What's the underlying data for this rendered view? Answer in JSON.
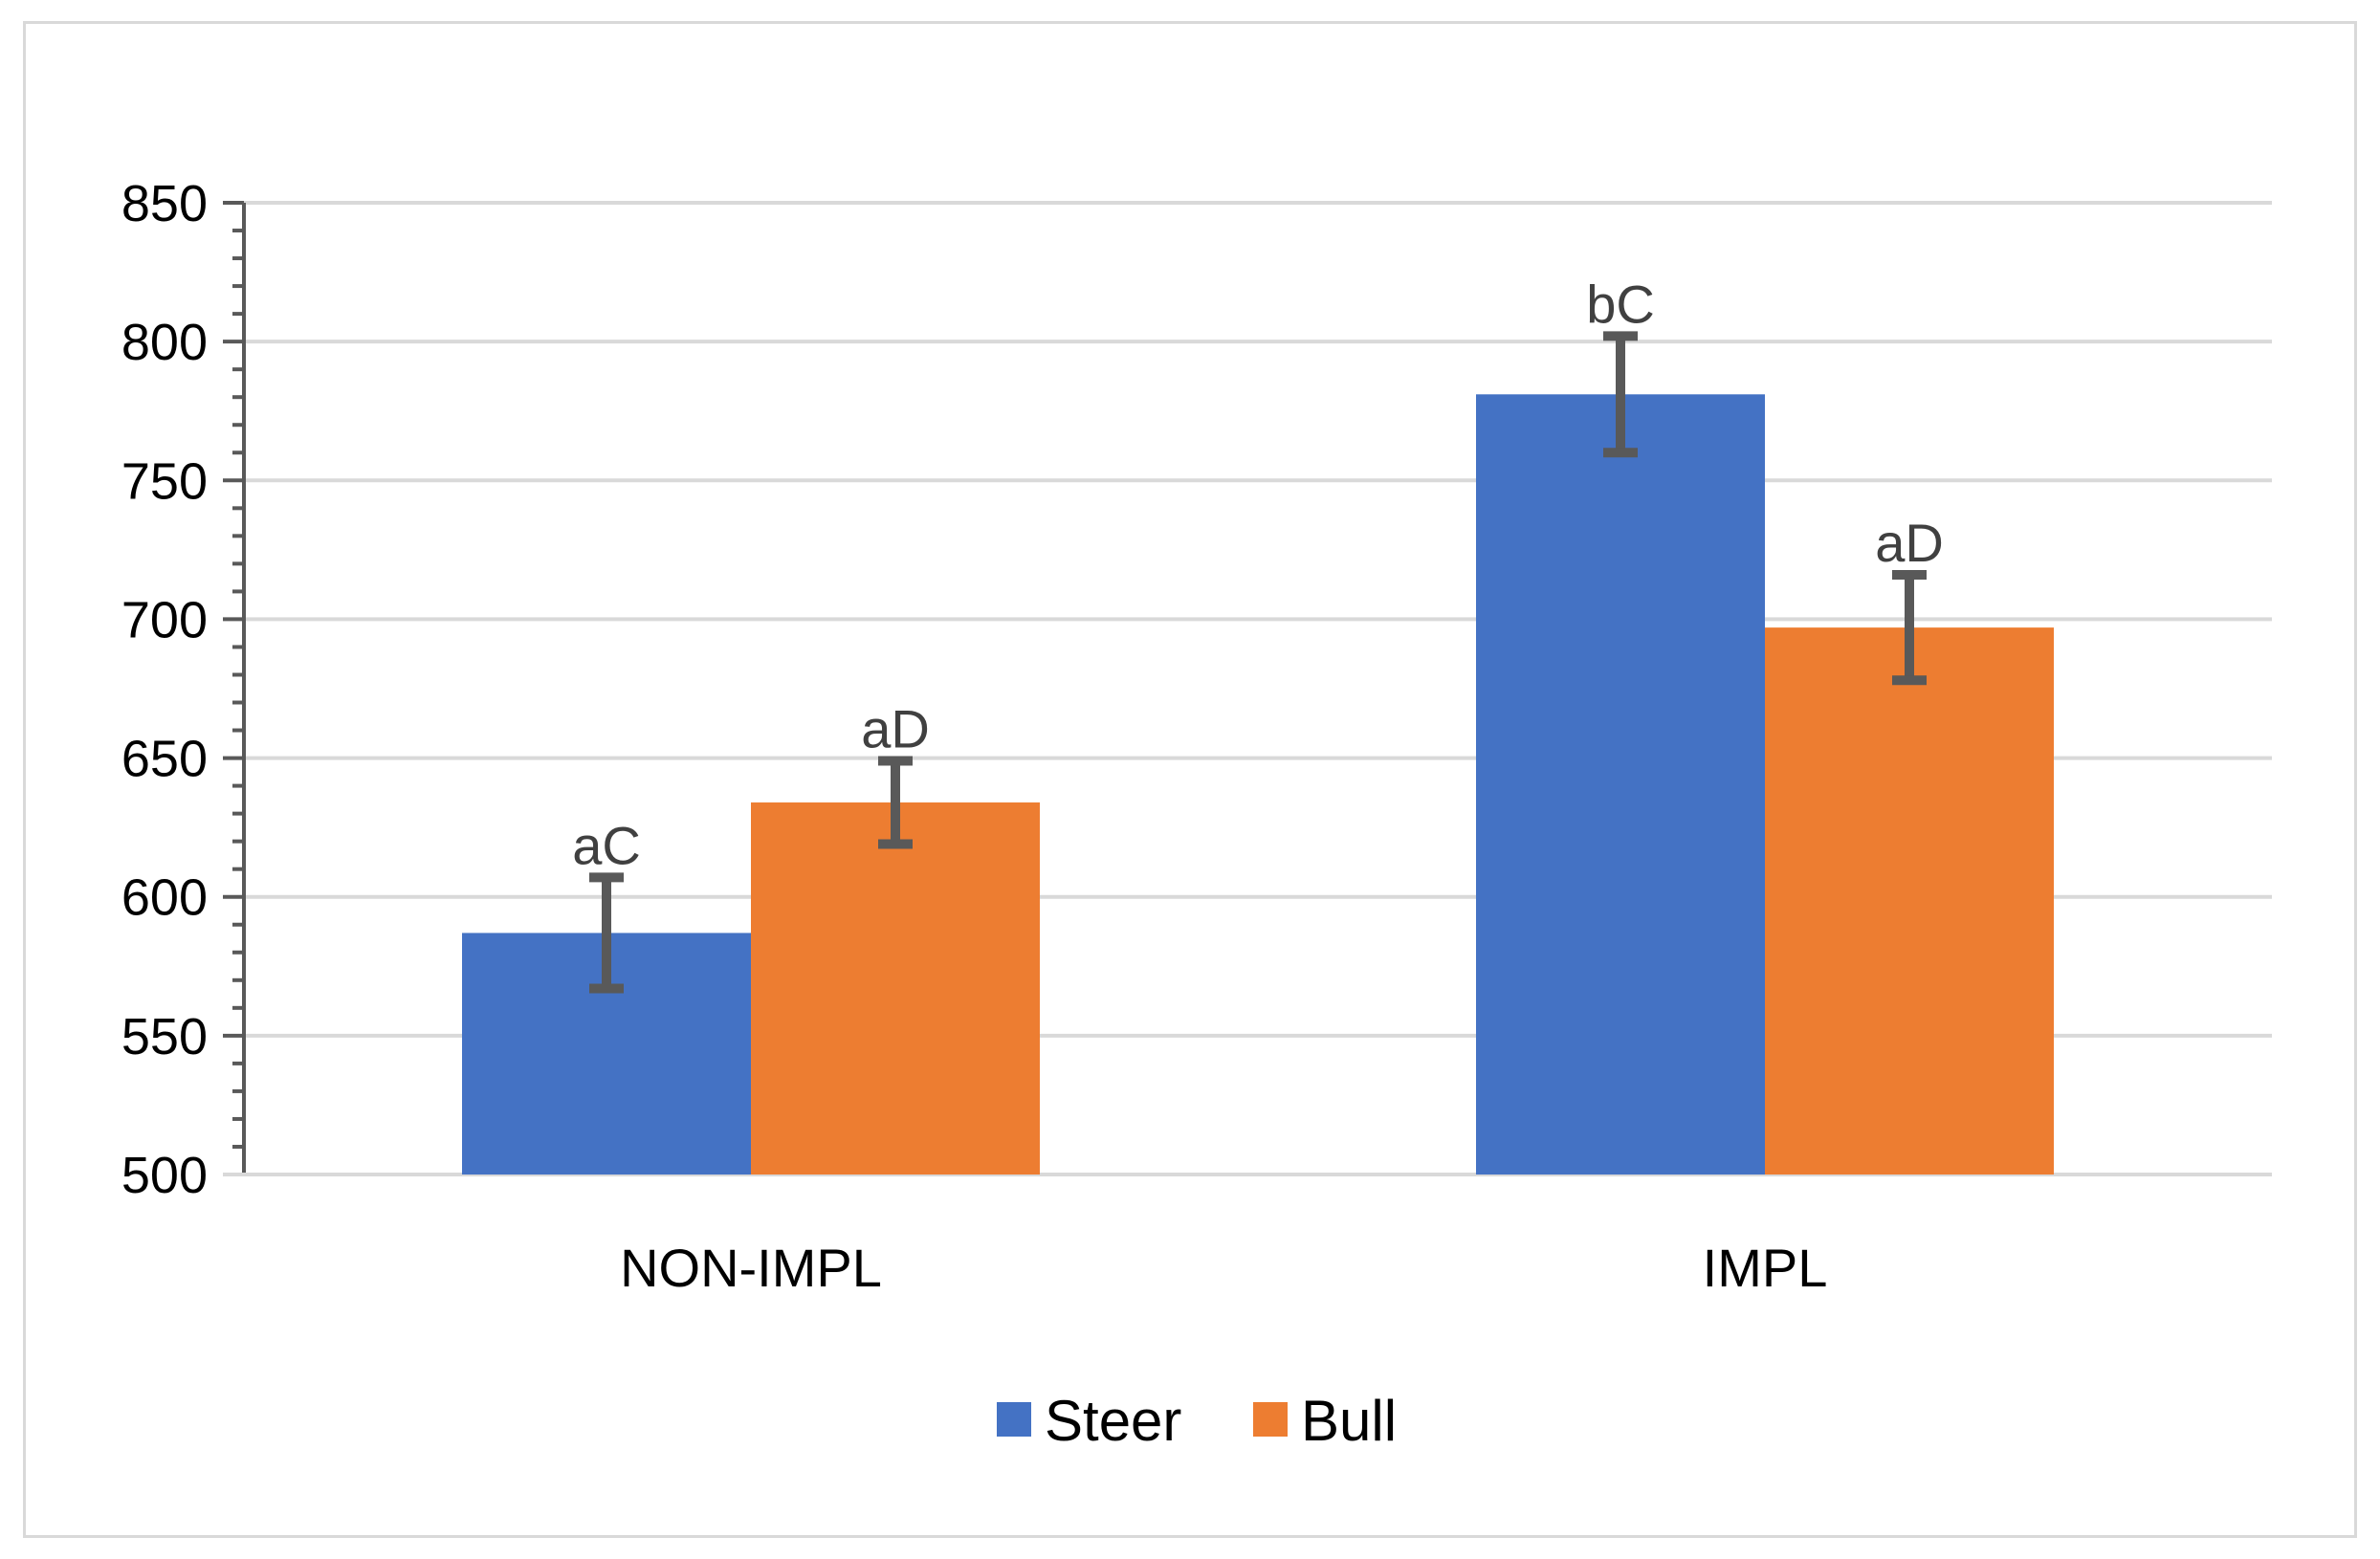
{
  "chart_data": {
    "type": "bar",
    "title": "",
    "xlabel": "",
    "ylabel": "",
    "categories": [
      "NON-IMPL",
      "IMPL"
    ],
    "ylim": [
      500,
      850
    ],
    "yticks": [
      500,
      550,
      600,
      650,
      700,
      750,
      800,
      850
    ],
    "grid": true,
    "legend": "bottom-center",
    "series": [
      {
        "name": "Steer",
        "color": "#4472C4",
        "values": [
          587,
          781
        ],
        "error": [
          20,
          21
        ],
        "labels": [
          "aC",
          "bC"
        ]
      },
      {
        "name": "Bull",
        "color": "#ED7D31",
        "values": [
          634,
          697
        ],
        "error": [
          15,
          19
        ],
        "labels": [
          "aD",
          "aD"
        ]
      }
    ]
  }
}
